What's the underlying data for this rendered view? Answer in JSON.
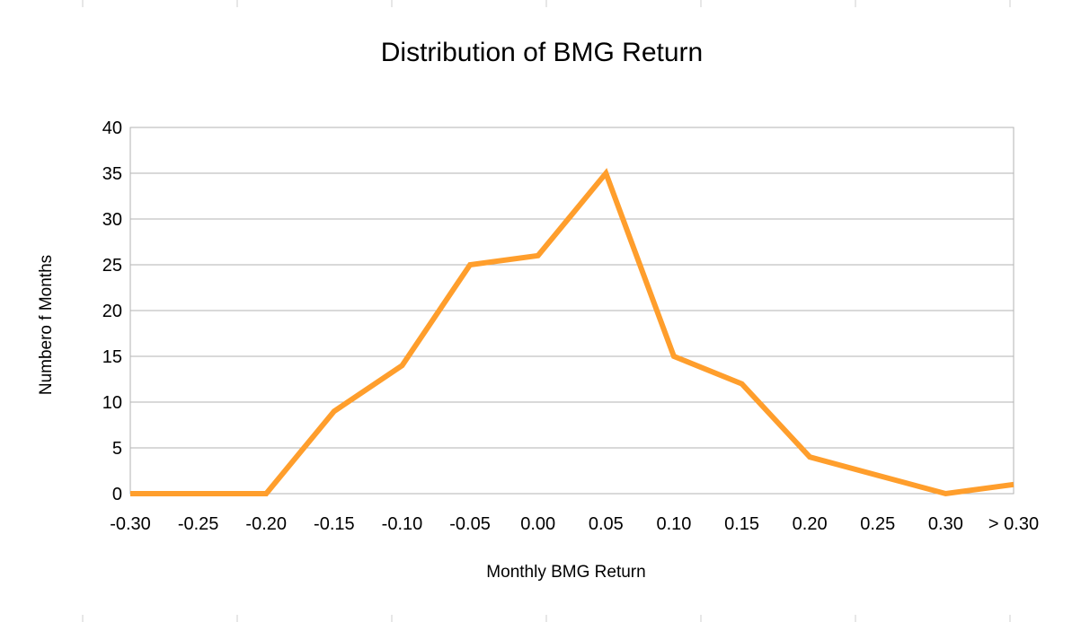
{
  "chart_data": {
    "type": "line",
    "title": "Distribution of BMG Return",
    "xlabel": "Monthly BMG Return",
    "ylabel": "Numbero f Months",
    "categories": [
      "-0.30",
      "-0.25",
      "-0.20",
      "-0.15",
      "-0.10",
      "-0.05",
      "0.00",
      "0.05",
      "0.10",
      "0.15",
      "0.20",
      "0.25",
      "0.30",
      "> 0.30"
    ],
    "series": [
      {
        "values": [
          0,
          0,
          0,
          9,
          14,
          25,
          26,
          35,
          15,
          12,
          4,
          2,
          0,
          1
        ],
        "color": "#ff9e2c"
      }
    ],
    "ylim": [
      0,
      40
    ],
    "yticks": [
      "0",
      "5",
      "10",
      "15",
      "20",
      "25",
      "30",
      "35",
      "40"
    ],
    "grid": true,
    "legend": "none"
  }
}
